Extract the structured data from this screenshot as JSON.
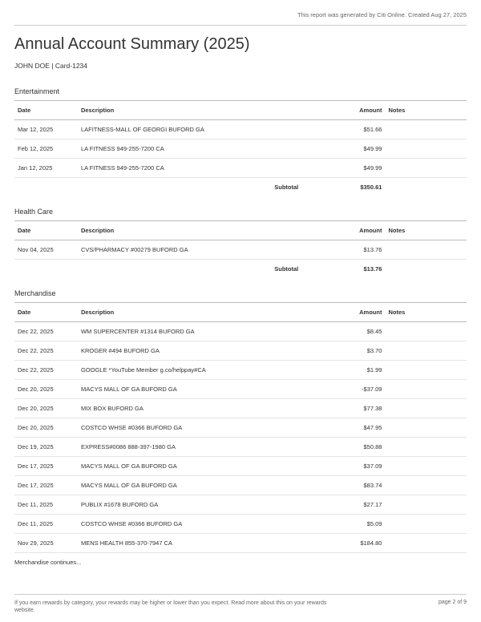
{
  "meta": {
    "generated": "This report was generated by Citi Online. Created Aug 27, 2025"
  },
  "title": "Annual Account Summary (2025)",
  "account": "JOHN DOE | Card-1234",
  "columns": {
    "date": "Date",
    "description": "Description",
    "amount": "Amount",
    "notes": "Notes"
  },
  "subtotal_label": "Subtotal",
  "sections": {
    "entertainment": {
      "title": "Entertainment",
      "subtotal": "$350.61",
      "rows": [
        {
          "date": "Mar 12, 2025",
          "desc": "LAFITNESS-MALL OF GEORGI BUFORD GA",
          "amount": "$51.66"
        },
        {
          "date": "Feb 12, 2025",
          "desc": "LA FITNESS 949-255-7200 CA",
          "amount": "$49.99"
        },
        {
          "date": "Jan 12, 2025",
          "desc": "LA FITNESS 949-255-7200 CA",
          "amount": "$49.99"
        }
      ]
    },
    "healthcare": {
      "title": "Health Care",
      "subtotal": "$13.76",
      "rows": [
        {
          "date": "Nov 04, 2025",
          "desc": "CVS/PHARMACY #00279 BUFORD GA",
          "amount": "$13.76"
        }
      ]
    },
    "merchandise": {
      "title": "Merchandise",
      "continues": "Merchandise continues...",
      "rows": [
        {
          "date": "Dec 22, 2025",
          "desc": "WM SUPERCENTER #1314 BUFORD GA",
          "amount": "$8.45"
        },
        {
          "date": "Dec 22, 2025",
          "desc": "KROGER #494 BUFORD GA",
          "amount": "$3.70"
        },
        {
          "date": "Dec 22, 2025",
          "desc": "GOOGLE *YouTube Member g.co/helppay#CA",
          "amount": "$1.99"
        },
        {
          "date": "Dec 20, 2025",
          "desc": "MACYS MALL OF GA BUFORD GA",
          "amount": "-$37.09"
        },
        {
          "date": "Dec 20, 2025",
          "desc": "MIX BOX BUFORD GA",
          "amount": "$77.38"
        },
        {
          "date": "Dec 20, 2025",
          "desc": "COSTCO WHSE #0366 BUFORD GA",
          "amount": "$47.95"
        },
        {
          "date": "Dec 19, 2025",
          "desc": "EXPRESS#0086 888-397-1980 GA",
          "amount": "$50.88"
        },
        {
          "date": "Dec 17, 2025",
          "desc": "MACYS MALL OF GA BUFORD GA",
          "amount": "$37.09"
        },
        {
          "date": "Dec 17, 2025",
          "desc": "MACYS MALL OF GA BUFORD GA",
          "amount": "$83.74"
        },
        {
          "date": "Dec 11, 2025",
          "desc": "PUBLIX #1678 BUFORD GA",
          "amount": "$27.17"
        },
        {
          "date": "Dec 11, 2025",
          "desc": "COSTCO WHSE #0366 BUFORD GA",
          "amount": "$5.09"
        },
        {
          "date": "Nov 29, 2025",
          "desc": "MENS HEALTH 855-370-7947 CA",
          "amount": "$184.80"
        }
      ]
    }
  },
  "footer": {
    "disclaimer": "If you earn rewards by category, your rewards may be higher or lower than you expect. Read more about this on your rewards website.",
    "page": "page 2 of 9"
  }
}
